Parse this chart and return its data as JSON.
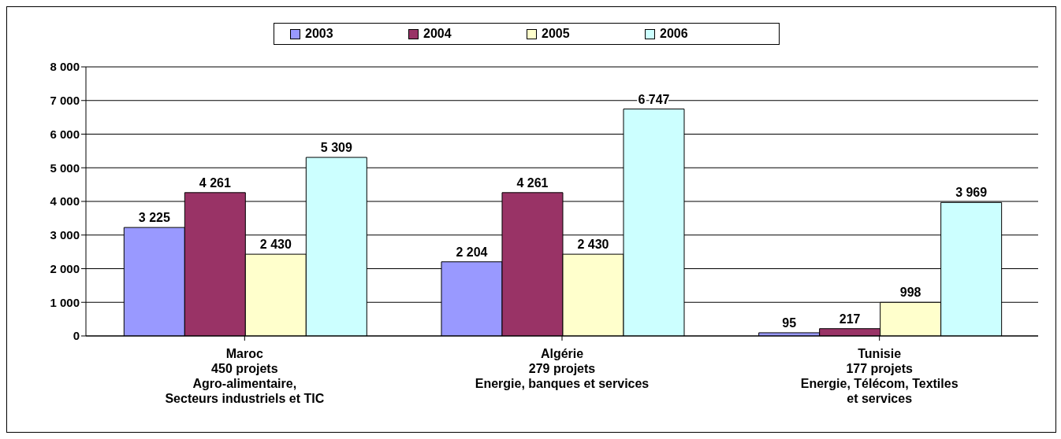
{
  "chart_data": {
    "type": "bar",
    "categories": [
      "Maroc\n450 projets\nAgro-alimentaire,\nSecteurs industriels et TIC",
      "Algérie\n279 projets\nEnergie, banques et services",
      "Tunisie\n177 projets\nEnergie, Télécom, Textiles\net services"
    ],
    "series": [
      {
        "name": "2003",
        "color": "#9999ff",
        "values": [
          3225,
          2204,
          95
        ],
        "value_labels": [
          "3 225",
          "2 204",
          "95"
        ]
      },
      {
        "name": "2004",
        "color": "#993366",
        "values": [
          4261,
          4261,
          217
        ],
        "value_labels": [
          "4 261",
          "4 261",
          "217"
        ]
      },
      {
        "name": "2005",
        "color": "#ffffcc",
        "values": [
          2430,
          2430,
          998
        ],
        "value_labels": [
          "2 430",
          "2 430",
          "998"
        ]
      },
      {
        "name": "2006",
        "color": "#ccffff",
        "values": [
          5309,
          6747,
          3969
        ],
        "value_labels": [
          "5 309",
          "6 747",
          "3 969"
        ]
      }
    ],
    "ylim": [
      0,
      8000
    ],
    "yticks": [
      {
        "value": 0,
        "label": "0"
      },
      {
        "value": 1000,
        "label": "1 000"
      },
      {
        "value": 2000,
        "label": "2 000"
      },
      {
        "value": 3000,
        "label": "3 000"
      },
      {
        "value": 4000,
        "label": "4 000"
      },
      {
        "value": 5000,
        "label": "5 000"
      },
      {
        "value": 6000,
        "label": "6 000"
      },
      {
        "value": 7000,
        "label": "7 000"
      },
      {
        "value": 8000,
        "label": "8 000"
      }
    ],
    "grid": "y",
    "legend": "top"
  }
}
